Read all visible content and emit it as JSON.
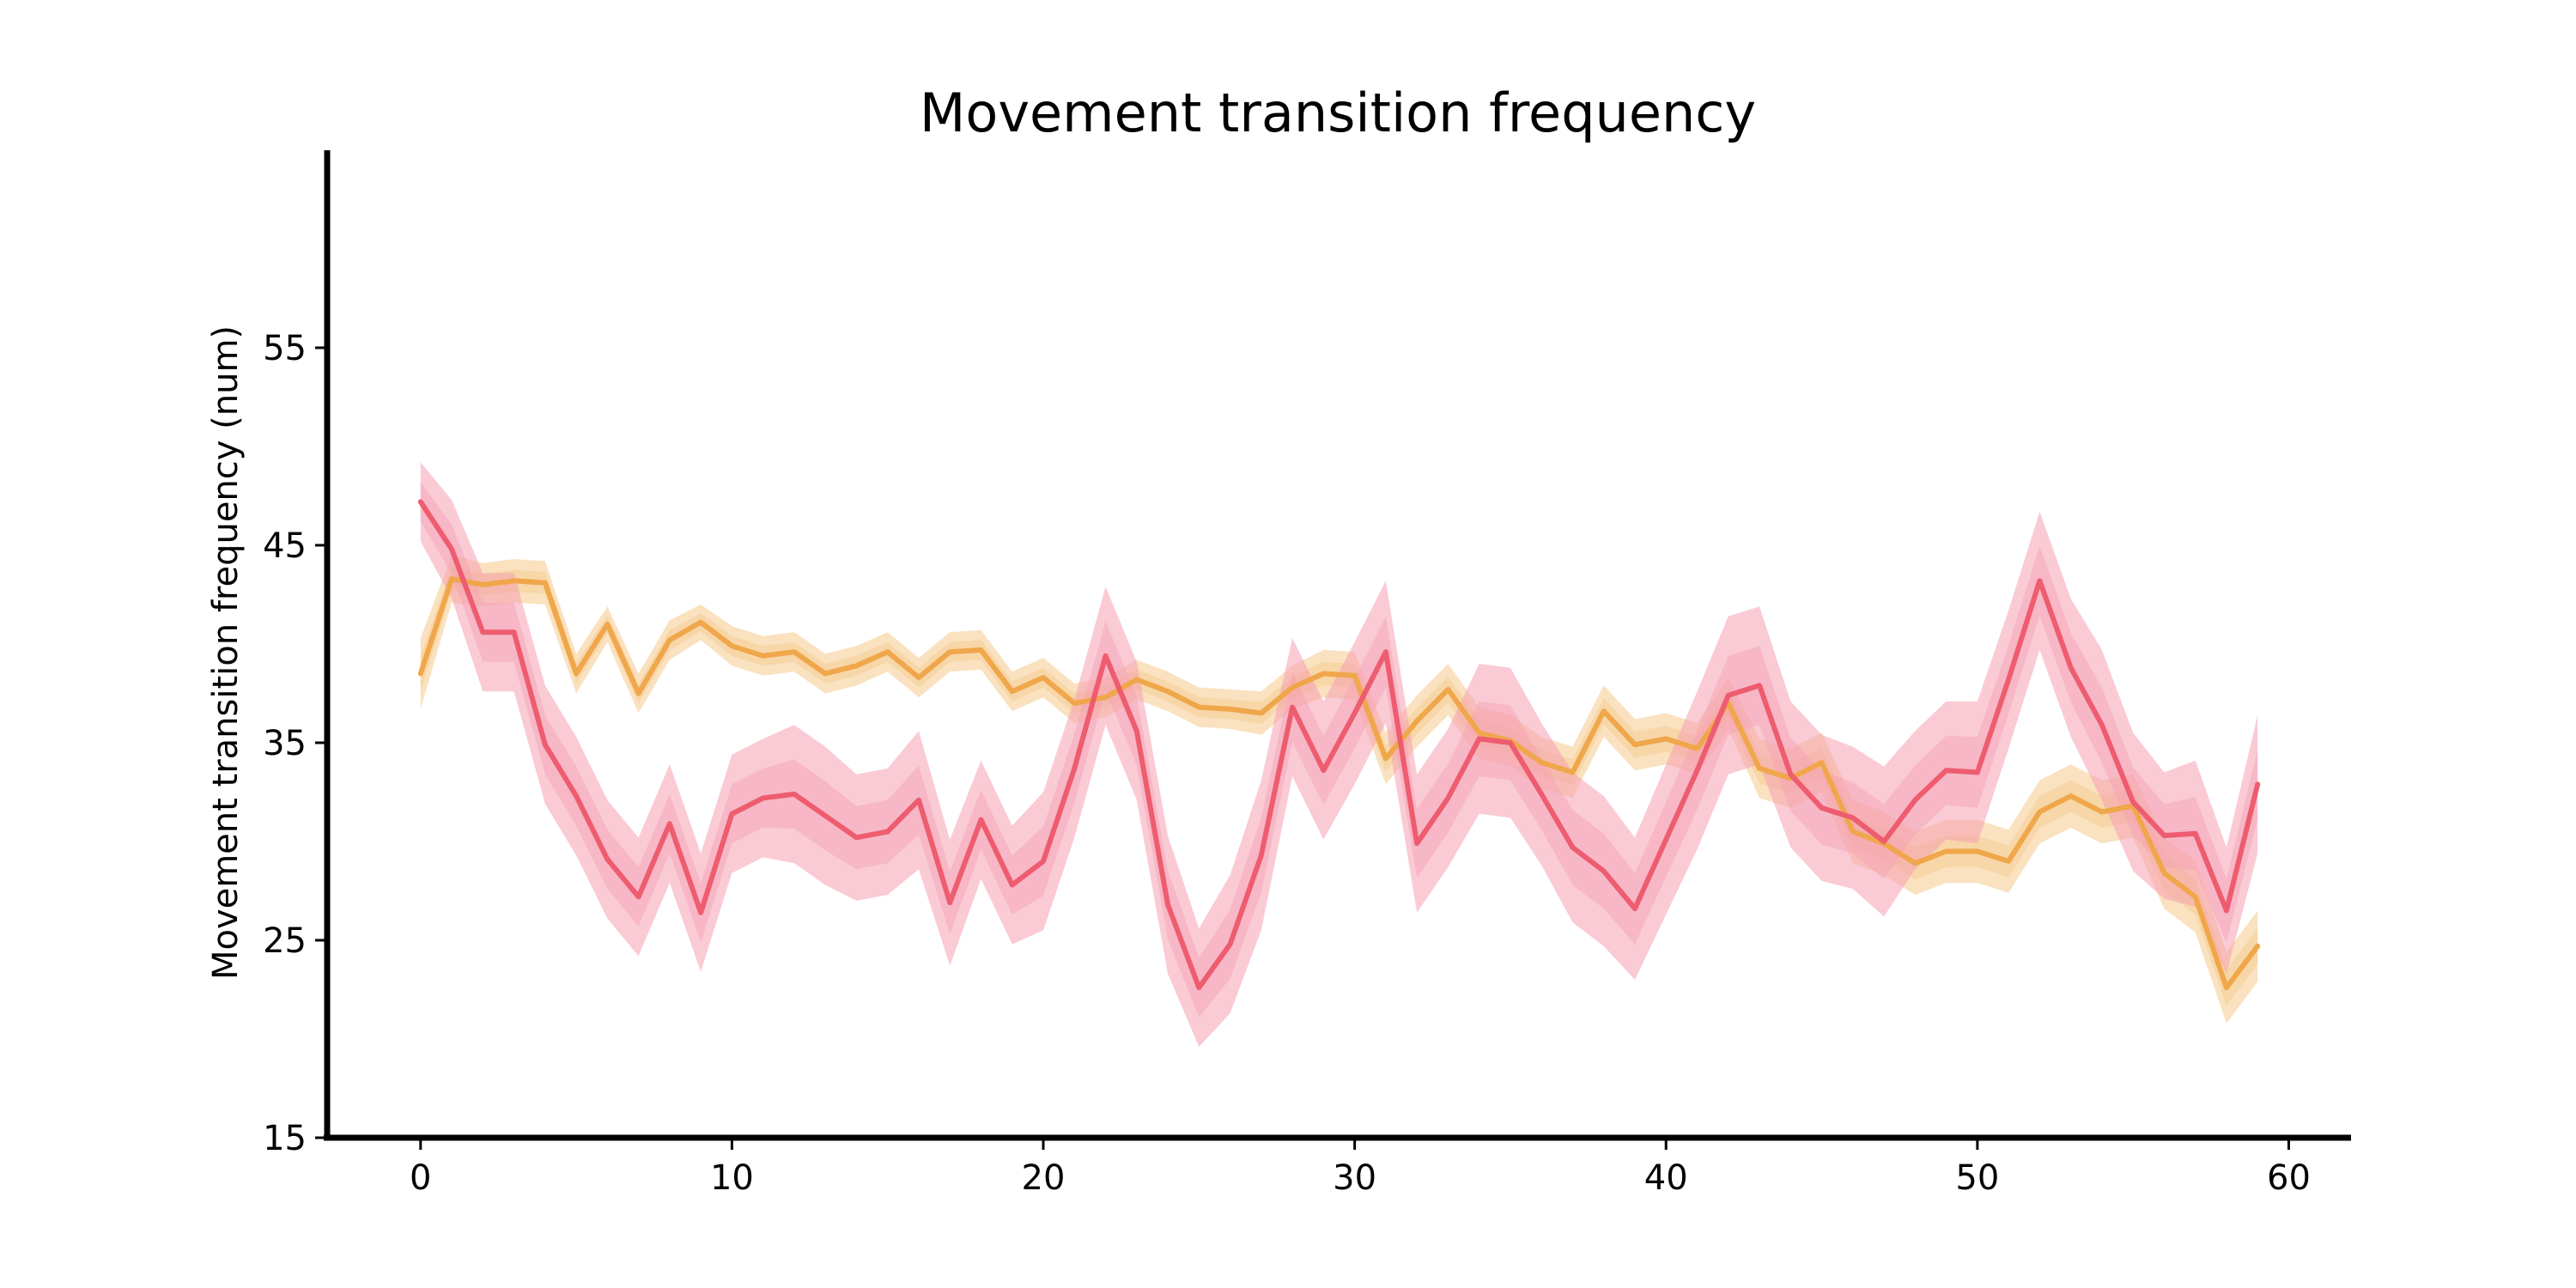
{
  "chart_data": {
    "type": "line",
    "title": "Movement transition frequency",
    "xlabel": "",
    "ylabel": "Movement transition frequency (num)",
    "xlim": [
      -3,
      62
    ],
    "ylim": [
      15,
      65
    ],
    "xticks": [
      0,
      10,
      20,
      30,
      40,
      50,
      60
    ],
    "yticks": [
      15,
      25,
      35,
      45,
      55
    ],
    "grid": false,
    "legend": "none",
    "x": [
      0,
      1,
      2,
      3,
      4,
      5,
      6,
      7,
      8,
      9,
      10,
      11,
      12,
      13,
      14,
      15,
      16,
      17,
      18,
      19,
      20,
      21,
      22,
      23,
      24,
      25,
      26,
      27,
      28,
      29,
      30,
      31,
      32,
      33,
      34,
      35,
      36,
      37,
      38,
      39,
      40,
      41,
      42,
      43,
      44,
      45,
      46,
      47,
      48,
      49,
      50,
      51,
      52,
      53,
      54,
      55,
      56,
      57,
      58,
      59
    ],
    "series": [
      {
        "color": "#f0a64a",
        "band_color": "#f5c98a",
        "values": [
          38.5,
          43.3,
          43.0,
          43.2,
          43.1,
          38.5,
          41.0,
          37.5,
          40.2,
          41.1,
          39.9,
          39.4,
          39.6,
          38.5,
          38.9,
          39.6,
          38.3,
          39.6,
          39.7,
          37.6,
          38.3,
          37.0,
          37.3,
          38.2,
          37.6,
          36.8,
          36.7,
          36.5,
          37.8,
          38.5,
          38.4,
          34.2,
          36.1,
          37.7,
          35.5,
          35.1,
          34.0,
          33.5,
          36.6,
          34.9,
          35.2,
          34.7,
          37.0,
          33.7,
          33.2,
          34.0,
          30.5,
          29.9,
          28.9,
          29.5,
          29.5,
          29.0,
          31.5,
          32.3,
          31.5,
          31.8,
          28.4,
          27.2,
          22.6,
          24.7
        ],
        "band": [
          1.8,
          1.2,
          1.1,
          1.1,
          1.1,
          1.0,
          0.9,
          1.0,
          1.0,
          0.9,
          1.0,
          1.0,
          1.0,
          1.0,
          1.0,
          1.0,
          1.0,
          1.0,
          1.0,
          1.0,
          1.0,
          1.0,
          1.0,
          1.0,
          1.0,
          1.0,
          1.0,
          1.1,
          1.1,
          1.2,
          1.2,
          1.3,
          1.3,
          1.3,
          1.3,
          1.3,
          1.3,
          1.3,
          1.3,
          1.3,
          1.3,
          1.3,
          1.3,
          1.5,
          1.5,
          1.5,
          1.6,
          1.6,
          1.6,
          1.6,
          1.6,
          1.6,
          1.6,
          1.6,
          1.6,
          1.6,
          1.8,
          1.8,
          1.8,
          1.8
        ]
      },
      {
        "color": "#ee5c70",
        "band_color": "#f5a0b3",
        "values": [
          47.2,
          44.8,
          40.6,
          40.6,
          34.9,
          32.3,
          29.1,
          27.2,
          30.9,
          26.4,
          31.4,
          32.2,
          32.4,
          31.3,
          30.2,
          30.5,
          32.1,
          26.9,
          31.1,
          27.8,
          29.0,
          33.7,
          39.4,
          35.6,
          26.8,
          22.6,
          24.8,
          29.3,
          36.8,
          33.6,
          36.5,
          39.6,
          29.9,
          32.2,
          35.2,
          35.0,
          32.4,
          29.7,
          28.5,
          26.6,
          30.1,
          33.6,
          37.4,
          37.9,
          33.4,
          31.7,
          31.2,
          30.0,
          32.1,
          33.6,
          33.5,
          38.2,
          43.2,
          38.8,
          35.9,
          32.0,
          30.3,
          30.4,
          26.5,
          32.9
        ],
        "band": [
          2.0,
          2.5,
          3.0,
          3.0,
          3.0,
          3.0,
          3.0,
          3.0,
          3.0,
          3.0,
          3.0,
          3.0,
          3.5,
          3.5,
          3.2,
          3.2,
          3.5,
          3.2,
          3.0,
          3.0,
          3.5,
          3.5,
          3.5,
          3.5,
          3.5,
          3.0,
          3.5,
          3.8,
          3.5,
          3.5,
          3.6,
          3.6,
          3.5,
          3.5,
          3.8,
          3.8,
          3.6,
          3.8,
          3.8,
          3.6,
          3.8,
          4.0,
          4.0,
          4.0,
          3.7,
          3.7,
          3.6,
          3.8,
          3.5,
          3.5,
          3.6,
          3.5,
          3.5,
          3.5,
          3.8,
          3.5,
          3.2,
          3.7,
          3.2,
          3.5
        ]
      }
    ]
  }
}
